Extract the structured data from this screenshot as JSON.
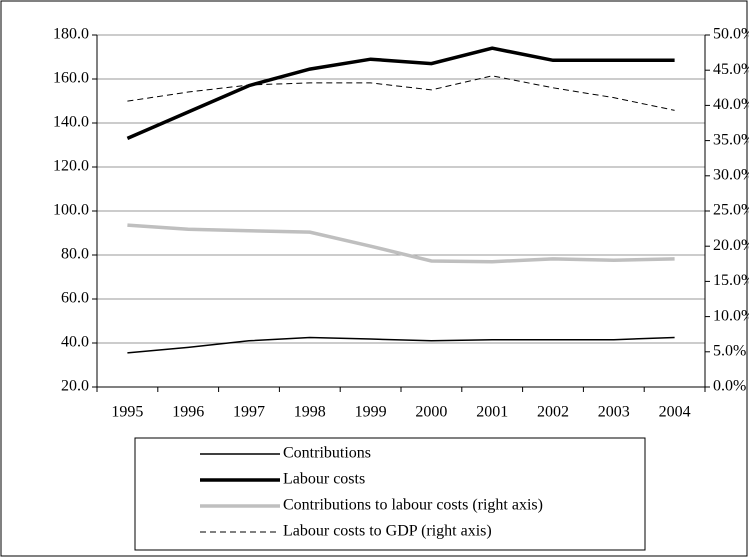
{
  "chart_data": {
    "type": "line",
    "categories": [
      "1995",
      "1996",
      "1997",
      "1998",
      "1999",
      "2000",
      "2001",
      "2002",
      "2003",
      "2004"
    ],
    "ylim": [
      20,
      180
    ],
    "yticks": [
      {
        "value": 20,
        "label": "20.0"
      },
      {
        "value": 40,
        "label": "40.0"
      },
      {
        "value": 60,
        "label": "60.0"
      },
      {
        "value": 80,
        "label": "80.0"
      },
      {
        "value": 100,
        "label": "100.0"
      },
      {
        "value": 120,
        "label": "120.0"
      },
      {
        "value": 140,
        "label": "140.0"
      },
      {
        "value": 160,
        "label": "160.0"
      },
      {
        "value": 180,
        "label": "180.0"
      }
    ],
    "y2lim": [
      0,
      50
    ],
    "y2ticks": [
      {
        "value": 0,
        "label": "0.0%"
      },
      {
        "value": 5,
        "label": "5.0%"
      },
      {
        "value": 10,
        "label": "10.0%"
      },
      {
        "value": 15,
        "label": "15.0%"
      },
      {
        "value": 20,
        "label": "20.0%"
      },
      {
        "value": 25,
        "label": "25.0%"
      },
      {
        "value": 30,
        "label": "30.0%"
      },
      {
        "value": 35,
        "label": "35.0%"
      },
      {
        "value": 40,
        "label": "40.0%"
      },
      {
        "value": 45,
        "label": "45.0%"
      },
      {
        "value": 50,
        "label": "50.0%"
      }
    ],
    "grid": true,
    "series": [
      {
        "name": "Contributions",
        "color": "#000000",
        "width": 1.5,
        "values": [
          35.5,
          38,
          41,
          42.5,
          41.8,
          41,
          41.5,
          41.5,
          41.5,
          42.5
        ]
      },
      {
        "name": "Labour costs",
        "color": "#000000",
        "width": 3.5,
        "values": [
          133,
          145,
          157,
          164.5,
          169,
          167,
          174,
          168.5,
          168.5,
          168.5
        ]
      },
      {
        "name": "Contributions to labour costs (right axis)",
        "color": "#bfbfbf",
        "width": 3.5,
        "axis": "y2",
        "values": [
          23,
          22.4,
          22.2,
          22,
          20,
          17.9,
          17.8,
          18.2,
          18,
          18.2
        ]
      },
      {
        "name": "Labour costs to GDP (right axis)",
        "color": "#000000",
        "width": 1,
        "dash": true,
        "axis": "y2",
        "values": [
          40.6,
          41.9,
          42.9,
          43.2,
          43.2,
          42.2,
          44.2,
          42.5,
          41.1,
          39.3
        ]
      }
    ]
  }
}
